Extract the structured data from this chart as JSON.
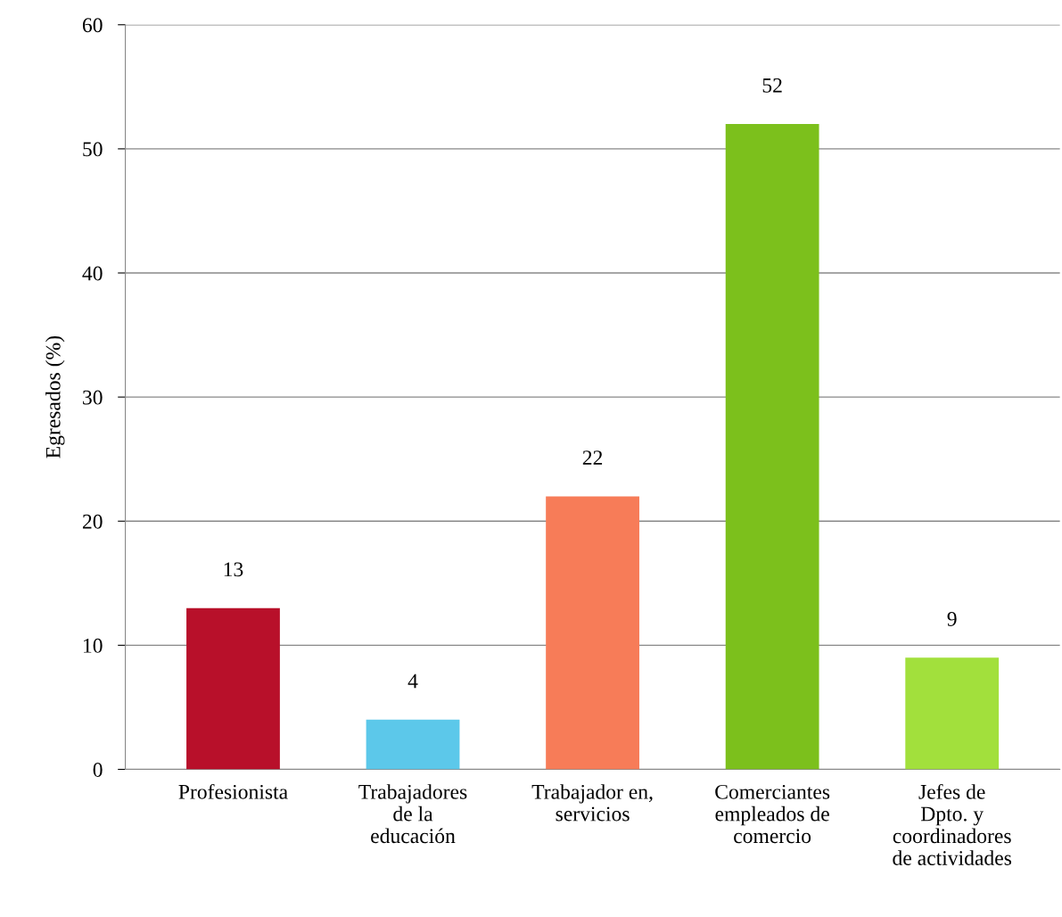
{
  "chart_data": {
    "type": "bar",
    "ylabel": "Egresados (%)",
    "categories": [
      "Profesionista",
      "Trabajadores\nde la\neducación",
      "Trabajador en,\nservicios",
      "Comerciantes\nempleados de\ncomercio",
      "Jefes de\nDpto. y\ncoordinadores\nde actividades"
    ],
    "values": [
      13,
      4,
      22,
      52,
      9
    ],
    "colors": [
      "#b8102a",
      "#5cc8ea",
      "#f77c58",
      "#7cc01c",
      "#a2e03c"
    ],
    "ylim": [
      0,
      60
    ],
    "yticks": [
      0,
      10,
      20,
      30,
      40,
      50,
      60
    ],
    "grid": "y",
    "data_labels": true
  }
}
